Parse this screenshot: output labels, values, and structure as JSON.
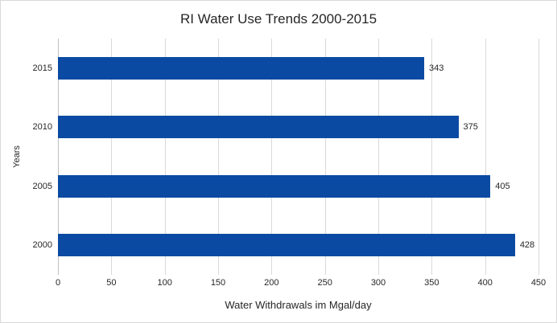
{
  "chart_data": {
    "type": "bar",
    "orientation": "horizontal",
    "title": "RI Water Use Trends 2000-2015",
    "categories": [
      "2015",
      "2010",
      "2005",
      "2000"
    ],
    "values": [
      343,
      375,
      405,
      428
    ],
    "data_labels": [
      "343",
      "375",
      "405",
      "428"
    ],
    "xlabel": "Water Withdrawals im Mgal/day",
    "ylabel": "Years",
    "xlim": [
      0,
      450
    ],
    "xticks": [
      0,
      50,
      100,
      150,
      200,
      250,
      300,
      350,
      400,
      450
    ],
    "grid": true,
    "legend": false,
    "colors": {
      "bar": "#0B4AA2",
      "gridline": "#D9D9D9",
      "axis_line": "#BFBFBF",
      "text": "#262626",
      "frame_border": "#D9D9D9",
      "background": "#FFFFFF"
    }
  }
}
